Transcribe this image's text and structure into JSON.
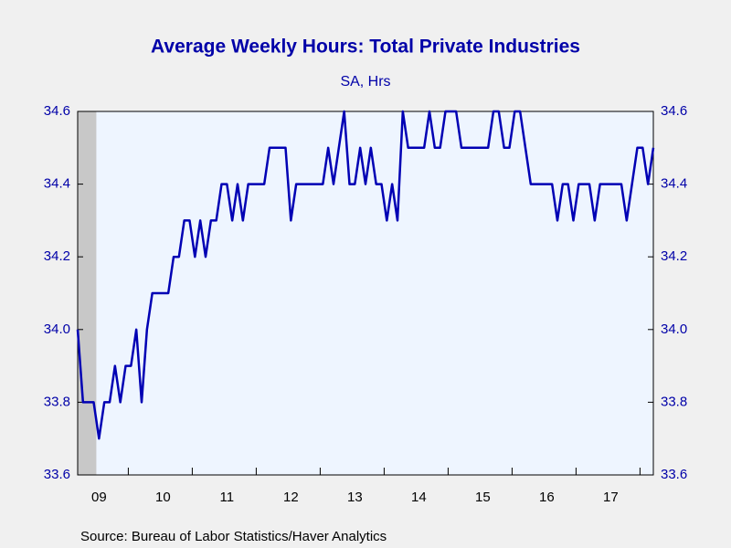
{
  "chart_data": {
    "type": "line",
    "title": "Average Weekly Hours: Total Private Industries",
    "subtitle": "SA, Hrs",
    "source": "Source:  Bureau of Labor Statistics/Haver Analytics",
    "categories": [
      null,
      null,
      null,
      null,
      "09",
      null,
      null,
      null,
      null,
      null,
      null,
      null,
      null,
      null,
      null,
      null,
      "10",
      null,
      null,
      null,
      null,
      null,
      null,
      null,
      null,
      null,
      null,
      null,
      "11",
      null,
      null,
      null,
      null,
      null,
      null,
      null,
      null,
      null,
      null,
      null,
      "12",
      null,
      null,
      null,
      null,
      null,
      null,
      null,
      null,
      null,
      null,
      null,
      "13",
      null,
      null,
      null,
      null,
      null,
      null,
      null,
      null,
      null,
      null,
      null,
      "14",
      null,
      null,
      null,
      null,
      null,
      null,
      null,
      null,
      null,
      null,
      null,
      "15",
      null,
      null,
      null,
      null,
      null,
      null,
      null,
      null,
      null,
      null,
      null,
      "16",
      null,
      null,
      null,
      null,
      null,
      null,
      null,
      null,
      null,
      null,
      null,
      "17",
      null,
      null,
      null,
      null,
      null,
      null,
      null,
      null
    ],
    "series": [
      {
        "name": "Average Weekly Hours",
        "color": "#0000b4",
        "values": [
          34.0,
          33.8,
          33.8,
          33.8,
          33.7,
          33.8,
          33.8,
          33.9,
          33.8,
          33.9,
          33.9,
          34.0,
          33.8,
          34.0,
          34.1,
          34.1,
          34.1,
          34.1,
          34.2,
          34.2,
          34.3,
          34.3,
          34.2,
          34.3,
          34.2,
          34.3,
          34.3,
          34.4,
          34.4,
          34.3,
          34.4,
          34.3,
          34.4,
          34.4,
          34.4,
          34.4,
          34.5,
          34.5,
          34.5,
          34.5,
          34.3,
          34.4,
          34.4,
          34.4,
          34.4,
          34.4,
          34.4,
          34.5,
          34.4,
          34.5,
          34.6,
          34.4,
          34.4,
          34.5,
          34.4,
          34.5,
          34.4,
          34.4,
          34.3,
          34.4,
          34.3,
          34.6,
          34.5,
          34.5,
          34.5,
          34.5,
          34.6,
          34.5,
          34.5,
          34.6,
          34.6,
          34.6,
          34.5,
          34.5,
          34.5,
          34.5,
          34.5,
          34.5,
          34.6,
          34.6,
          34.5,
          34.5,
          34.6,
          34.6,
          34.5,
          34.4,
          34.4,
          34.4,
          34.4,
          34.4,
          34.3,
          34.4,
          34.4,
          34.3,
          34.4,
          34.4,
          34.4,
          34.3,
          34.4,
          34.4,
          34.4,
          34.4,
          34.4,
          34.3,
          34.4,
          34.5,
          34.5,
          34.4,
          34.5
        ]
      }
    ],
    "ylim": [
      33.6,
      34.6
    ],
    "yticks": [
      33.6,
      33.8,
      {
        "value": 34,
        "label": "34.0"
      },
      34.2,
      34.4,
      34.6
    ],
    "grid": false
  }
}
